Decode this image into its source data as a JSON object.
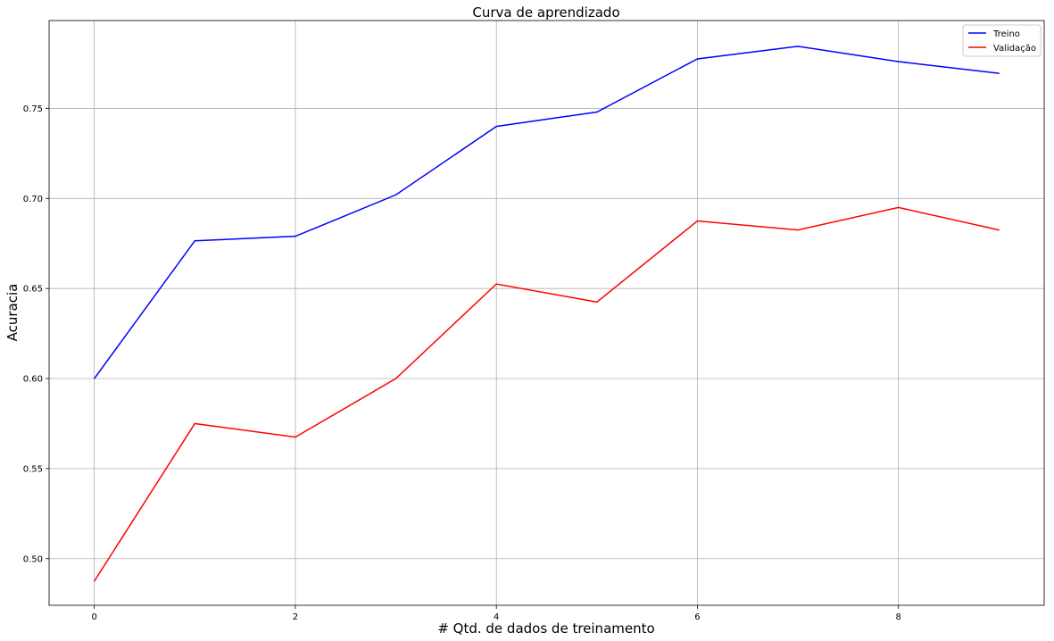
{
  "chart_data": {
    "type": "line",
    "title": "Curva de aprendizado",
    "xlabel": "# Qtd. de dados de treinamento",
    "ylabel": "Acuracia",
    "x": [
      0,
      1,
      2,
      3,
      4,
      5,
      6,
      7,
      8,
      9
    ],
    "xlim": [
      -0.45,
      9.45
    ],
    "ylim": [
      0.4741,
      0.7988
    ],
    "xticks": [
      0,
      2,
      4,
      6,
      8
    ],
    "xtick_labels": [
      "0",
      "2",
      "4",
      "6",
      "8"
    ],
    "yticks": [
      0.5,
      0.55,
      0.6,
      0.65,
      0.7,
      0.75
    ],
    "ytick_labels": [
      "0.50",
      "0.55",
      "0.60",
      "0.65",
      "0.70",
      "0.75"
    ],
    "grid": true,
    "legend_position": "top-right",
    "series": [
      {
        "name": "Treino",
        "color": "#0000ff",
        "values": [
          0.6,
          0.6765,
          0.679,
          0.702,
          0.74,
          0.748,
          0.7775,
          0.7845,
          0.776,
          0.7695
        ]
      },
      {
        "name": "Validação",
        "color": "#ff0000",
        "values": [
          0.4875,
          0.575,
          0.5675,
          0.6,
          0.6525,
          0.6425,
          0.6875,
          0.6825,
          0.695,
          0.6825
        ]
      }
    ]
  }
}
